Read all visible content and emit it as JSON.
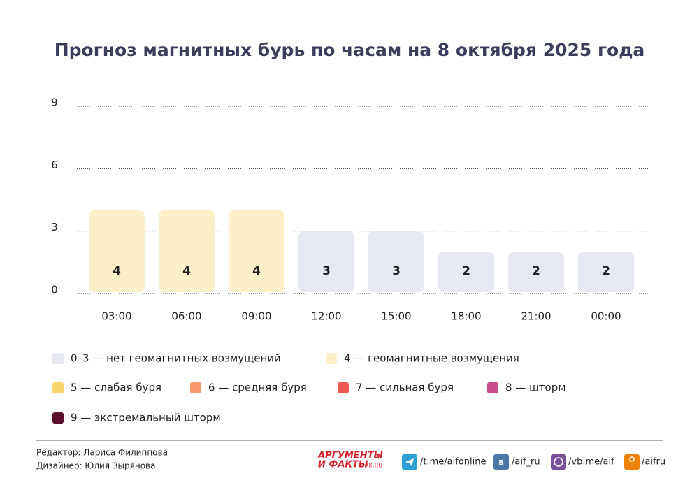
{
  "chart_data": {
    "type": "bar",
    "title": "Прогноз магнитных бурь по часам на 8 октября 2025 года",
    "categories": [
      "03:00",
      "06:00",
      "09:00",
      "12:00",
      "15:00",
      "18:00",
      "21:00",
      "00:00"
    ],
    "values": [
      4,
      4,
      4,
      3,
      3,
      2,
      2,
      2
    ],
    "colors": [
      "#fdefc7",
      "#fdefc7",
      "#fdefc7",
      "#e6e8f2",
      "#e6e8f2",
      "#e6e8f2",
      "#e6e8f2",
      "#e6e8f2"
    ],
    "ylim": [
      0,
      9
    ],
    "yticks": [
      0,
      3,
      6,
      9
    ],
    "grid": true,
    "legend": [
      {
        "label": "0–3 — нет геомагнитных возмущений",
        "color": "#e6e8f2"
      },
      {
        "label": "4 — геомагнитные возмущения",
        "color": "#fdefc7"
      },
      {
        "label": "5 — слабая буря",
        "color": "#f9d56e"
      },
      {
        "label": "6 — средняя буря",
        "color": "#f7996a"
      },
      {
        "label": "7 — сильная буря",
        "color": "#ee5a52"
      },
      {
        "label": "8 — шторм",
        "color": "#c84f8a"
      },
      {
        "label": "9 — экстремальный шторм",
        "color": "#5c0f2c"
      }
    ]
  },
  "footer": {
    "editor": "Редактор: Лариса Филиппова",
    "designer": "Дизайнер: Юлия Зырянова",
    "logo_top": "АРГУМЕНТЫ",
    "logo_bottom": "И ФАКТЫ",
    "logo_site": "AIF.RU",
    "links": [
      "/t.me/aifonline",
      "/aif_ru",
      "/vb.me/aif",
      "/aifru"
    ]
  }
}
